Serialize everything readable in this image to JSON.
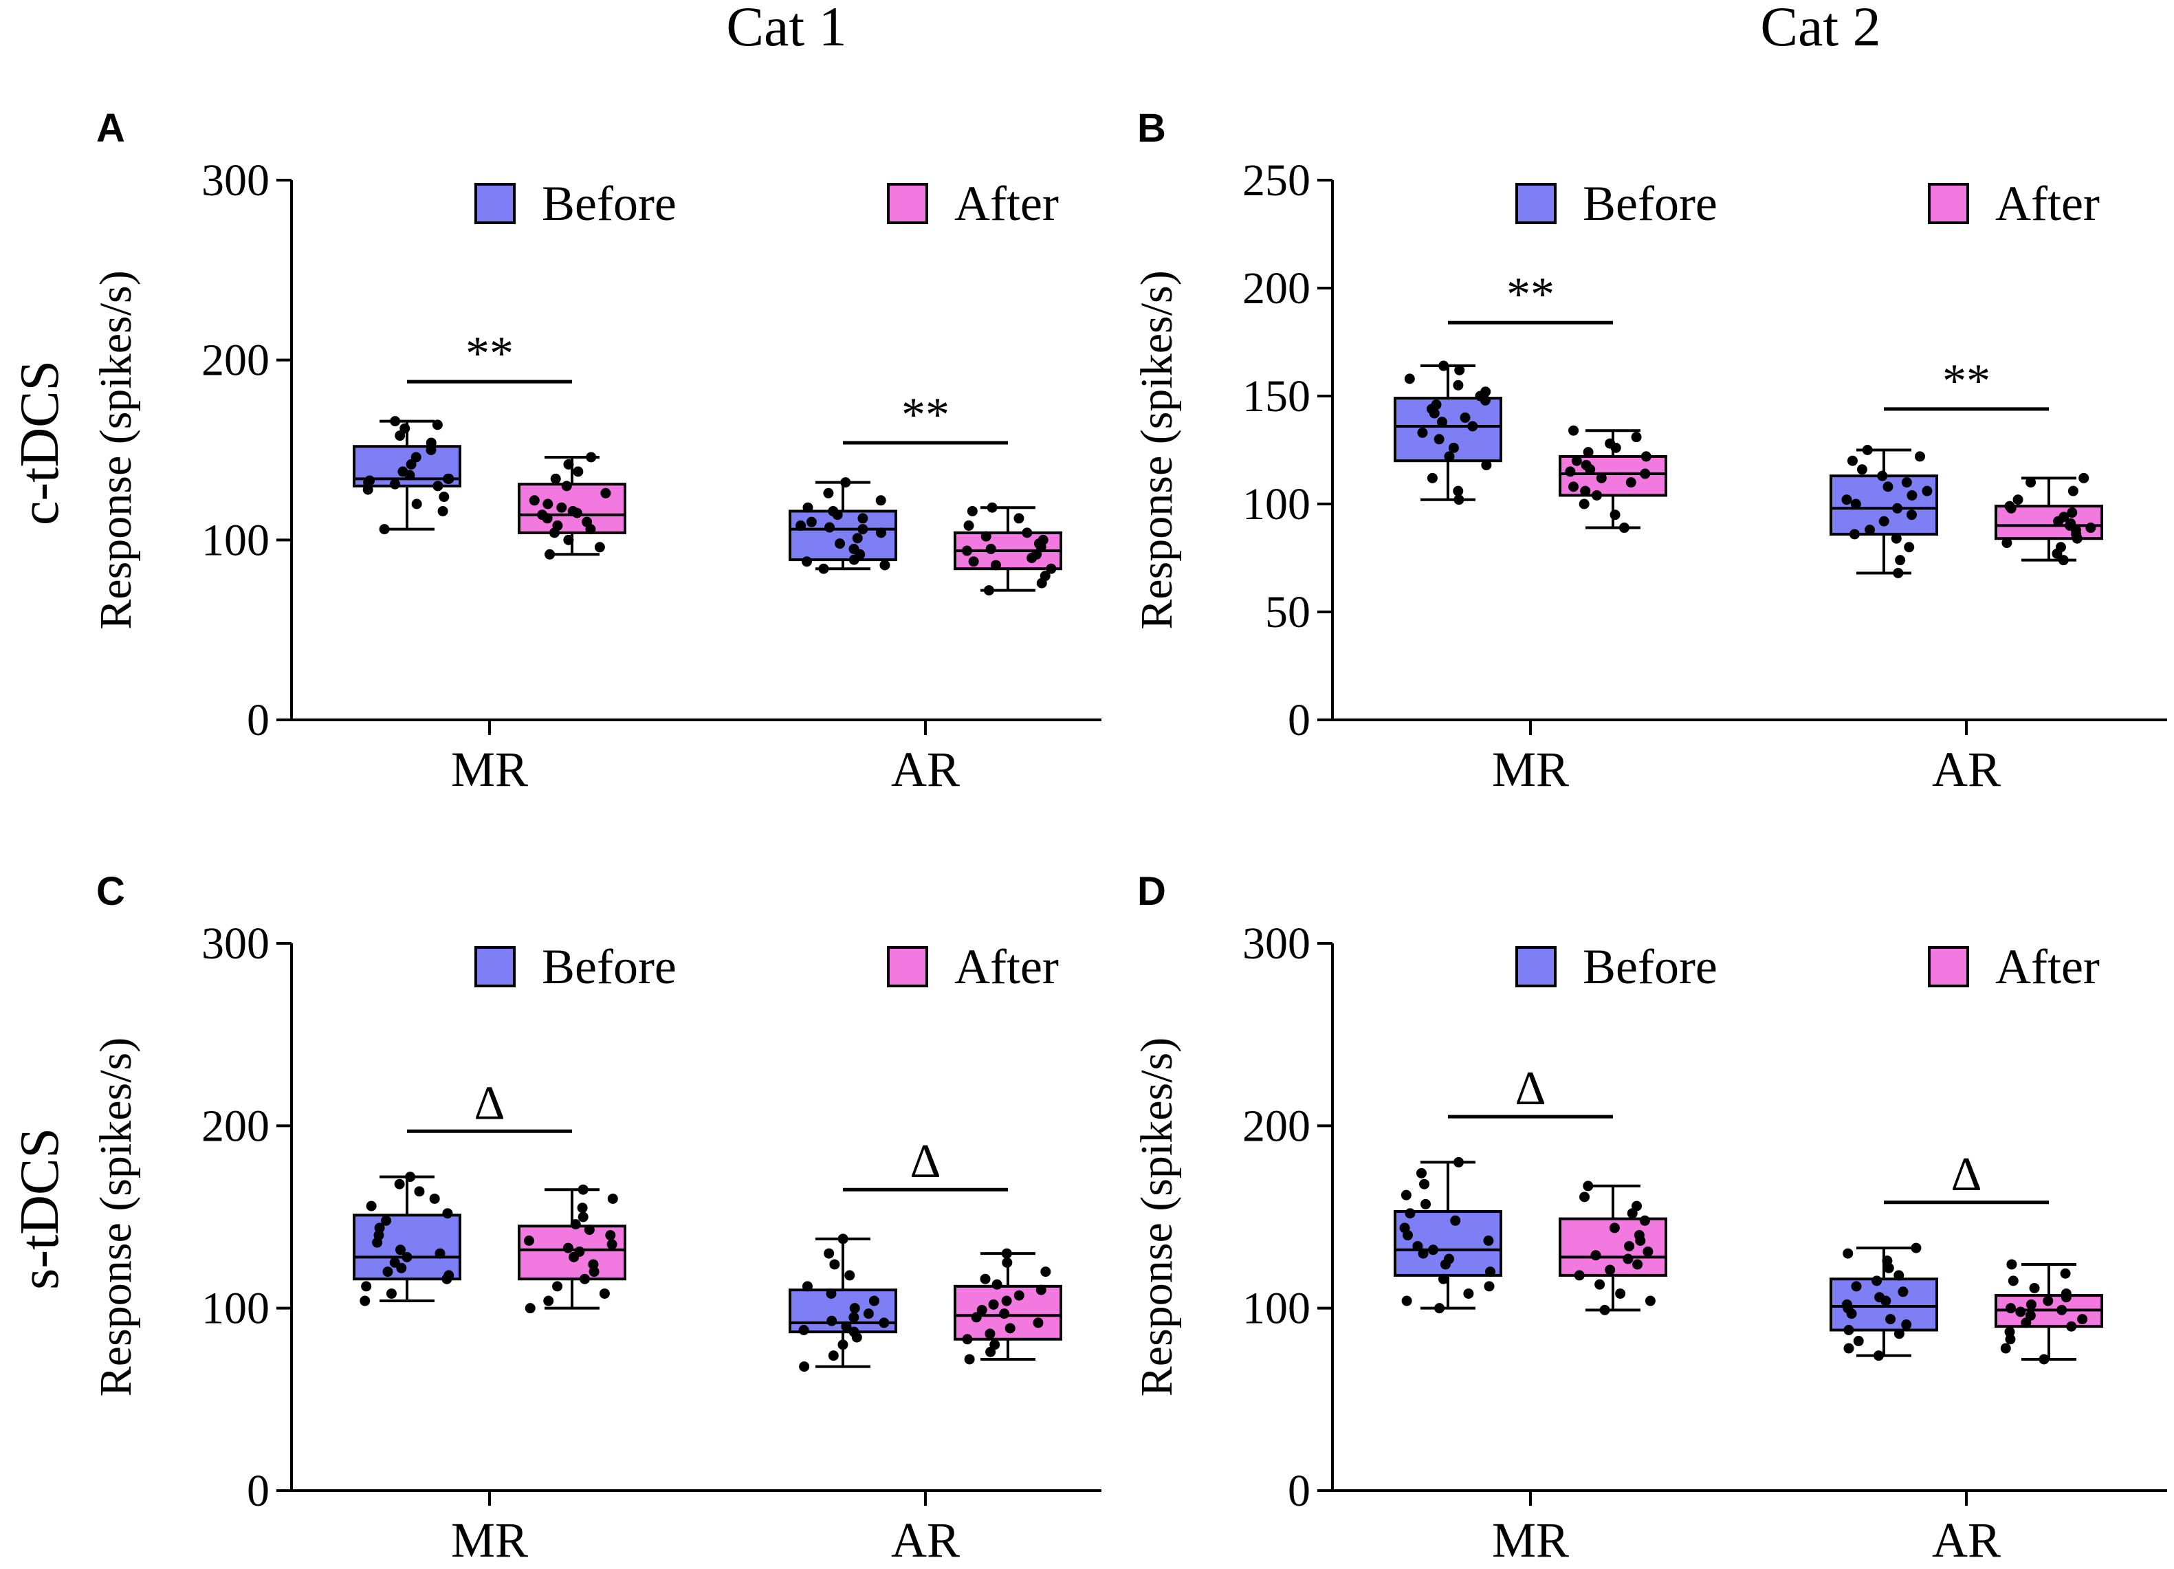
{
  "figure": {
    "column_titles": [
      "Cat 1",
      "Cat 2"
    ],
    "row_titles": [
      "c-tDCS",
      "s-tDCS"
    ]
  },
  "colors": {
    "before": "#7f7ff5",
    "after": "#f279e0",
    "ink": "#000000"
  },
  "chart_data": [
    {
      "panel": "A",
      "type": "box",
      "cat": "Cat 1",
      "condition": "c-tDCS",
      "ylabel": "Response (spikes/s)",
      "ylim": [
        0,
        300
      ],
      "yticks": [
        0,
        100,
        200,
        300
      ],
      "categories": [
        "MR",
        "AR"
      ],
      "legend": [
        "Before",
        "After"
      ],
      "series": [
        {
          "name": "Before",
          "boxes": [
            {
              "min": 106,
              "q1": 130,
              "median": 134,
              "q3": 152,
              "max": 166,
              "points": [
                106,
                116,
                120,
                124,
                128,
                130,
                131,
                132,
                133,
                134,
                134,
                136,
                138,
                142,
                146,
                150,
                154,
                158,
                162,
                164,
                166
              ]
            },
            {
              "min": 84,
              "q1": 89,
              "median": 106,
              "q3": 116,
              "max": 132,
              "points": [
                84,
                86,
                88,
                89,
                92,
                95,
                98,
                101,
                104,
                106,
                107,
                108,
                110,
                112,
                114,
                116,
                118,
                122,
                126,
                132
              ]
            }
          ]
        },
        {
          "name": "After",
          "boxes": [
            {
              "min": 92,
              "q1": 104,
              "median": 114,
              "q3": 131,
              "max": 146,
              "points": [
                92,
                96,
                100,
                104,
                106,
                108,
                110,
                112,
                114,
                115,
                116,
                118,
                120,
                122,
                126,
                130,
                134,
                138,
                142,
                146
              ]
            },
            {
              "min": 72,
              "q1": 84,
              "median": 94,
              "q3": 104,
              "max": 118,
              "points": [
                72,
                76,
                80,
                84,
                86,
                88,
                90,
                92,
                94,
                95,
                96,
                98,
                100,
                102,
                104,
                108,
                112,
                116,
                118
              ]
            }
          ]
        }
      ],
      "significance": [
        {
          "category": "MR",
          "label": "**",
          "y": 188
        },
        {
          "category": "AR",
          "label": "**",
          "y": 154
        }
      ]
    },
    {
      "panel": "B",
      "type": "box",
      "cat": "Cat 2",
      "condition": "c-tDCS",
      "ylabel": "Response (spikes/s)",
      "ylim": [
        0,
        250
      ],
      "yticks": [
        0,
        50,
        100,
        150,
        200,
        250
      ],
      "categories": [
        "MR",
        "AR"
      ],
      "legend": [
        "Before",
        "After"
      ],
      "series": [
        {
          "name": "Before",
          "boxes": [
            {
              "min": 102,
              "q1": 120,
              "median": 136,
              "q3": 149,
              "max": 164,
              "points": [
                102,
                106,
                112,
                118,
                122,
                126,
                130,
                133,
                136,
                138,
                140,
                142,
                144,
                146,
                148,
                150,
                152,
                155,
                158,
                162,
                164
              ]
            },
            {
              "min": 68,
              "q1": 86,
              "median": 98,
              "q3": 113,
              "max": 125,
              "points": [
                68,
                74,
                80,
                84,
                86,
                88,
                92,
                95,
                98,
                100,
                102,
                104,
                106,
                108,
                110,
                113,
                116,
                120,
                122,
                125
              ]
            }
          ]
        },
        {
          "name": "After",
          "boxes": [
            {
              "min": 89,
              "q1": 104,
              "median": 114,
              "q3": 122,
              "max": 134,
              "points": [
                89,
                95,
                100,
                104,
                106,
                108,
                110,
                112,
                114,
                115,
                116,
                118,
                120,
                122,
                124,
                126,
                128,
                131,
                134
              ]
            },
            {
              "min": 74,
              "q1": 84,
              "median": 90,
              "q3": 99,
              "max": 112,
              "points": [
                74,
                77,
                80,
                82,
                84,
                86,
                88,
                89,
                90,
                91,
                92,
                94,
                96,
                98,
                99,
                102,
                106,
                110,
                112
              ]
            }
          ]
        }
      ],
      "significance": [
        {
          "category": "MR",
          "label": "**",
          "y": 184
        },
        {
          "category": "AR",
          "label": "**",
          "y": 144
        }
      ]
    },
    {
      "panel": "C",
      "type": "box",
      "cat": "Cat 1",
      "condition": "s-tDCS",
      "ylabel": "Response (spikes/s)",
      "ylim": [
        0,
        300
      ],
      "yticks": [
        0,
        100,
        200,
        300
      ],
      "categories": [
        "MR",
        "AR"
      ],
      "legend": [
        "Before",
        "After"
      ],
      "series": [
        {
          "name": "Before",
          "boxes": [
            {
              "min": 104,
              "q1": 116,
              "median": 128,
              "q3": 151,
              "max": 172,
              "points": [
                104,
                108,
                112,
                116,
                118,
                120,
                122,
                125,
                128,
                130,
                132,
                136,
                140,
                144,
                148,
                152,
                156,
                160,
                164,
                168,
                172
              ]
            },
            {
              "min": 68,
              "q1": 87,
              "median": 92,
              "q3": 110,
              "max": 138,
              "points": [
                68,
                74,
                80,
                84,
                87,
                88,
                90,
                92,
                93,
                95,
                97,
                100,
                104,
                108,
                112,
                118,
                124,
                130,
                138
              ]
            }
          ]
        },
        {
          "name": "After",
          "boxes": [
            {
              "min": 100,
              "q1": 116,
              "median": 132,
              "q3": 145,
              "max": 165,
              "points": [
                100,
                104,
                108,
                112,
                116,
                120,
                124,
                128,
                131,
                133,
                135,
                137,
                140,
                143,
                146,
                150,
                155,
                160,
                165
              ]
            },
            {
              "min": 72,
              "q1": 83,
              "median": 96,
              "q3": 112,
              "max": 130,
              "points": [
                72,
                76,
                80,
                83,
                86,
                89,
                92,
                95,
                97,
                99,
                102,
                104,
                107,
                110,
                113,
                116,
                120,
                125,
                130
              ]
            }
          ]
        }
      ],
      "significance": [
        {
          "category": "MR",
          "label": "Δ",
          "y": 197
        },
        {
          "category": "AR",
          "label": "Δ",
          "y": 165
        }
      ]
    },
    {
      "panel": "D",
      "type": "box",
      "cat": "Cat 2",
      "condition": "s-tDCS",
      "ylabel": "Response (spikes/s)",
      "ylim": [
        0,
        300
      ],
      "yticks": [
        0,
        100,
        200,
        300
      ],
      "categories": [
        "MR",
        "AR"
      ],
      "legend": [
        "Before",
        "After"
      ],
      "series": [
        {
          "name": "Before",
          "boxes": [
            {
              "min": 100,
              "q1": 118,
              "median": 132,
              "q3": 153,
              "max": 180,
              "points": [
                100,
                104,
                108,
                112,
                116,
                120,
                124,
                127,
                130,
                132,
                134,
                137,
                140,
                144,
                148,
                152,
                157,
                162,
                168,
                174,
                180
              ]
            },
            {
              "min": 74,
              "q1": 88,
              "median": 101,
              "q3": 116,
              "max": 133,
              "points": [
                74,
                78,
                82,
                86,
                88,
                91,
                94,
                97,
                100,
                102,
                104,
                106,
                109,
                112,
                115,
                118,
                122,
                126,
                130,
                133
              ]
            }
          ]
        },
        {
          "name": "After",
          "boxes": [
            {
              "min": 99,
              "q1": 118,
              "median": 128,
              "q3": 149,
              "max": 167,
              "points": [
                99,
                104,
                108,
                113,
                118,
                121,
                124,
                127,
                129,
                131,
                134,
                137,
                140,
                144,
                148,
                152,
                156,
                161,
                167
              ]
            },
            {
              "min": 72,
              "q1": 90,
              "median": 99,
              "q3": 107,
              "max": 124,
              "points": [
                72,
                78,
                83,
                87,
                90,
                92,
                94,
                96,
                98,
                99,
                100,
                102,
                104,
                106,
                108,
                111,
                115,
                119,
                124
              ]
            }
          ]
        }
      ],
      "significance": [
        {
          "category": "MR",
          "label": "Δ",
          "y": 205
        },
        {
          "category": "AR",
          "label": "Δ",
          "y": 158
        }
      ]
    }
  ]
}
